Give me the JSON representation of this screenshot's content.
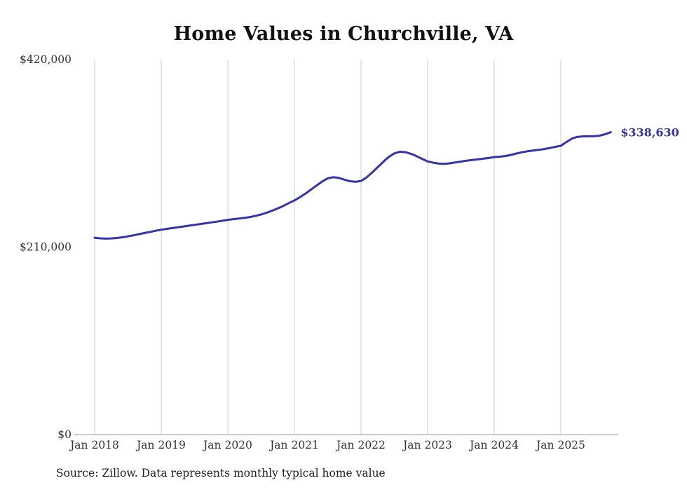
{
  "chart_data": {
    "type": "line",
    "title": "Home Values in Churchville, VA",
    "source": "Source: Zillow. Data represents monthly typical home value",
    "series_name": "Typical home value",
    "end_label": "$338,630",
    "latest_value": 338630,
    "colors": {
      "line": "#3632a8",
      "grid": "#cccccc",
      "axis": "#999999",
      "tick_text": "#333333"
    },
    "ylim": [
      0,
      420000
    ],
    "y_ticks": [
      {
        "label": "$420,000",
        "value": 420000
      },
      {
        "label": "$210,000",
        "value": 210000
      },
      {
        "label": "$0",
        "value": 0
      }
    ],
    "x_tick_labels": [
      "Jan 2018",
      "Jan 2019",
      "Jan 2020",
      "Jan 2021",
      "Jan 2022",
      "Jan 2023",
      "Jan 2024",
      "Jan 2025"
    ],
    "x_tick_month_indices": [
      0,
      12,
      24,
      36,
      48,
      60,
      72,
      84
    ],
    "x_start": "Jan 2018",
    "x_end": "Oct 2025",
    "x_interval": "monthly",
    "values": [
      220500,
      219800,
      219500,
      219700,
      220200,
      221000,
      222000,
      223200,
      224500,
      225800,
      227000,
      228300,
      229500,
      230400,
      231300,
      232200,
      233100,
      234000,
      234900,
      235800,
      236700,
      237600,
      238500,
      239500,
      240500,
      241300,
      242000,
      242800,
      243700,
      245000,
      246600,
      248500,
      250800,
      253300,
      256200,
      259300,
      262300,
      266000,
      270000,
      274500,
      279000,
      283500,
      287000,
      288300,
      287500,
      285500,
      283800,
      283200,
      284000,
      288000,
      293500,
      299500,
      305500,
      311000,
      315000,
      316800,
      316300,
      314500,
      311800,
      308800,
      306000,
      304500,
      303500,
      303200,
      303800,
      304800,
      305800,
      306800,
      307500,
      308200,
      309000,
      309800,
      310800,
      311300,
      312000,
      313200,
      314800,
      316200,
      317300,
      318100,
      318900,
      319800,
      321000,
      322300,
      323500,
      327500,
      331500,
      333500,
      334000,
      334000,
      334200,
      334800,
      336500,
      338630
    ]
  }
}
